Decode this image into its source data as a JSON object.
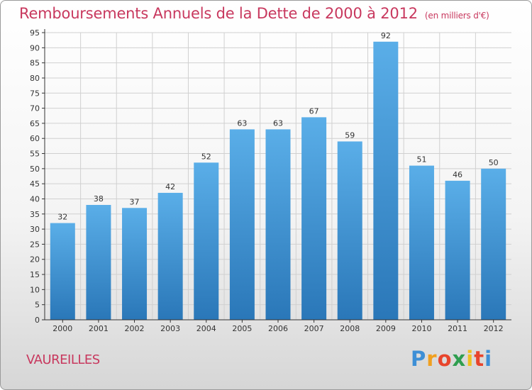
{
  "chart_data": {
    "type": "bar",
    "title": "Remboursements Annuels de la Dette de 2000 à 2012",
    "subtitle": "(en milliers d'€)",
    "categories": [
      "2000",
      "2001",
      "2002",
      "2003",
      "2004",
      "2005",
      "2006",
      "2007",
      "2008",
      "2009",
      "2010",
      "2011",
      "2012"
    ],
    "values": [
      32,
      38,
      37,
      42,
      52,
      63,
      63,
      67,
      59,
      92,
      51,
      46,
      50
    ],
    "ylim": [
      0,
      95
    ],
    "yticks": [
      0,
      5,
      10,
      15,
      20,
      25,
      30,
      35,
      40,
      45,
      50,
      55,
      60,
      65,
      70,
      75,
      80,
      85,
      90,
      95
    ],
    "grid": true,
    "bar_color_top": "#5aaee8",
    "bar_color_bottom": "#2a77b8"
  },
  "location": "VAUREILLES",
  "logo": {
    "letters": [
      "P",
      "r",
      "o",
      "x",
      "i",
      "t",
      "i"
    ],
    "colors": [
      "#3d8fd6",
      "#f0a020",
      "#e8452c",
      "#2f9e4f",
      "#f0c020",
      "#e8452c",
      "#3d8fd6"
    ]
  },
  "colors": {
    "title": "#c8385e",
    "axis": "#333333",
    "grid": "#d0d0d0"
  }
}
